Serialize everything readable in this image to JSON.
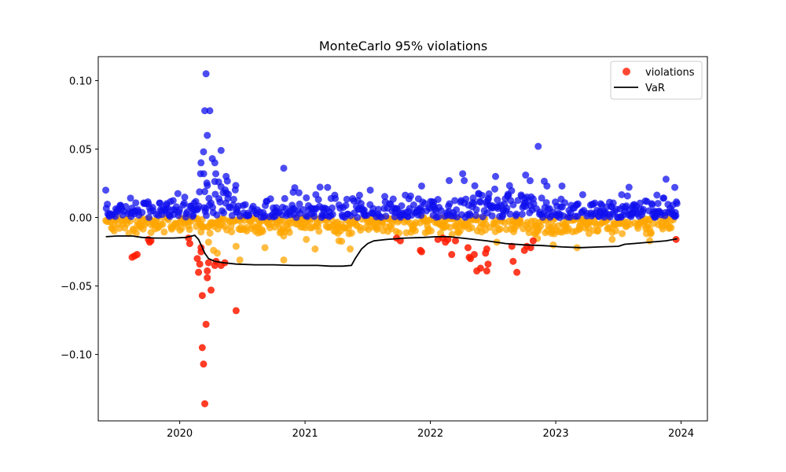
{
  "chart_data": {
    "type": "scatter",
    "title": "MonteCarlo 95% violations",
    "xlabel": "",
    "ylabel": "",
    "xlim": [
      2019.35,
      2024.21
    ],
    "ylim": [
      -0.1485,
      0.1175
    ],
    "x_ticks": [
      2020,
      2021,
      2022,
      2023,
      2024
    ],
    "x_tick_labels": [
      "2020",
      "2021",
      "2022",
      "2023",
      "2024"
    ],
    "y_ticks": [
      0.1,
      0.05,
      0.0,
      -0.05,
      -0.1
    ],
    "y_tick_labels": [
      "0.10",
      "0.05",
      "0.00",
      "−0.05",
      "−0.10"
    ],
    "legend": {
      "placement": "top-right"
    },
    "grid": false,
    "colors": {
      "positive": "#1010ee",
      "negative": "#ffa500",
      "violations": "#ff1a00",
      "var": "#000000"
    },
    "series": [
      {
        "name": "violations",
        "kind": "scatter",
        "points": [
          [
            2019.62,
            -0.029
          ],
          [
            2019.64,
            -0.028
          ],
          [
            2019.66,
            -0.027
          ],
          [
            2019.75,
            -0.016
          ],
          [
            2019.76,
            -0.018
          ],
          [
            2019.77,
            -0.017
          ],
          [
            2020.07,
            -0.015
          ],
          [
            2020.08,
            -0.019
          ],
          [
            2020.14,
            -0.03
          ],
          [
            2020.15,
            -0.04
          ],
          [
            2020.16,
            -0.034
          ],
          [
            2020.17,
            -0.022
          ],
          [
            2020.17,
            -0.025
          ],
          [
            2020.18,
            -0.057
          ],
          [
            2020.18,
            -0.095
          ],
          [
            2020.19,
            -0.107
          ],
          [
            2020.2,
            -0.136
          ],
          [
            2020.21,
            -0.078
          ],
          [
            2020.22,
            -0.044
          ],
          [
            2020.22,
            -0.039
          ],
          [
            2020.23,
            -0.033
          ],
          [
            2020.25,
            -0.053
          ],
          [
            2020.28,
            -0.035
          ],
          [
            2020.29,
            -0.032
          ],
          [
            2020.33,
            -0.035
          ],
          [
            2020.36,
            -0.033
          ],
          [
            2020.45,
            -0.068
          ],
          [
            2021.73,
            -0.015
          ],
          [
            2021.76,
            -0.017
          ],
          [
            2021.92,
            -0.024
          ],
          [
            2021.93,
            -0.025
          ],
          [
            2022.06,
            -0.016
          ],
          [
            2022.1,
            -0.015
          ],
          [
            2022.12,
            -0.018
          ],
          [
            2022.14,
            -0.016
          ],
          [
            2022.17,
            -0.027
          ],
          [
            2022.2,
            -0.017
          ],
          [
            2022.3,
            -0.022
          ],
          [
            2022.31,
            -0.029
          ],
          [
            2022.32,
            -0.03
          ],
          [
            2022.35,
            -0.027
          ],
          [
            2022.37,
            -0.039
          ],
          [
            2022.4,
            -0.037
          ],
          [
            2022.44,
            -0.026
          ],
          [
            2022.45,
            -0.023
          ],
          [
            2022.45,
            -0.039
          ],
          [
            2022.46,
            -0.034
          ],
          [
            2022.65,
            -0.021
          ],
          [
            2022.66,
            -0.032
          ],
          [
            2022.69,
            -0.04
          ],
          [
            2022.75,
            -0.024
          ],
          [
            2022.77,
            -0.021
          ],
          [
            2022.8,
            -0.022
          ],
          [
            2022.82,
            -0.017
          ],
          [
            2023.96,
            -0.016
          ]
        ]
      },
      {
        "name": "VaR",
        "kind": "line",
        "points": [
          [
            2019.41,
            -0.014
          ],
          [
            2019.5,
            -0.0135
          ],
          [
            2019.62,
            -0.0135
          ],
          [
            2019.7,
            -0.0145
          ],
          [
            2019.8,
            -0.015
          ],
          [
            2019.95,
            -0.015
          ],
          [
            2020.05,
            -0.0145
          ],
          [
            2020.12,
            -0.013
          ],
          [
            2020.15,
            -0.016
          ],
          [
            2020.18,
            -0.022
          ],
          [
            2020.2,
            -0.026
          ],
          [
            2020.23,
            -0.03
          ],
          [
            2020.28,
            -0.032
          ],
          [
            2020.35,
            -0.033
          ],
          [
            2020.45,
            -0.034
          ],
          [
            2020.6,
            -0.0345
          ],
          [
            2020.75,
            -0.0345
          ],
          [
            2020.9,
            -0.035
          ],
          [
            2021.1,
            -0.035
          ],
          [
            2021.2,
            -0.0355
          ],
          [
            2021.3,
            -0.0355
          ],
          [
            2021.37,
            -0.035
          ],
          [
            2021.4,
            -0.03
          ],
          [
            2021.45,
            -0.023
          ],
          [
            2021.5,
            -0.019
          ],
          [
            2021.55,
            -0.017
          ],
          [
            2021.65,
            -0.016
          ],
          [
            2021.8,
            -0.015
          ],
          [
            2021.95,
            -0.0145
          ],
          [
            2022.05,
            -0.014
          ],
          [
            2022.15,
            -0.014
          ],
          [
            2022.25,
            -0.015
          ],
          [
            2022.35,
            -0.016
          ],
          [
            2022.45,
            -0.017
          ],
          [
            2022.6,
            -0.019
          ],
          [
            2022.75,
            -0.02
          ],
          [
            2022.9,
            -0.0205
          ],
          [
            2023.05,
            -0.0215
          ],
          [
            2023.2,
            -0.022
          ],
          [
            2023.35,
            -0.0215
          ],
          [
            2023.5,
            -0.021
          ],
          [
            2023.55,
            -0.0195
          ],
          [
            2023.62,
            -0.019
          ],
          [
            2023.75,
            -0.018
          ],
          [
            2023.88,
            -0.017
          ],
          [
            2023.97,
            -0.0155
          ]
        ]
      }
    ],
    "background_points": {
      "positive": [
        [
          2019.41,
          0.02
        ],
        [
          2020.17,
          0.04
        ],
        [
          2020.19,
          0.048
        ],
        [
          2020.2,
          0.078
        ],
        [
          2020.21,
          0.105
        ],
        [
          2020.22,
          0.06
        ],
        [
          2020.24,
          0.078
        ],
        [
          2020.26,
          0.043
        ],
        [
          2020.28,
          0.04
        ],
        [
          2020.33,
          0.049
        ],
        [
          2020.31,
          0.026
        ],
        [
          2020.37,
          0.03
        ],
        [
          2020.83,
          0.036
        ],
        [
          2021.18,
          0.022
        ],
        [
          2022.15,
          0.027
        ],
        [
          2022.27,
          0.027
        ],
        [
          2022.52,
          0.03
        ],
        [
          2022.76,
          0.031
        ],
        [
          2022.86,
          0.052
        ],
        [
          2022.93,
          0.023
        ],
        [
          2023.05,
          0.023
        ],
        [
          2023.88,
          0.028
        ],
        [
          2023.95,
          0.022
        ],
        [
          2021.93,
          0.023
        ],
        [
          2021.52,
          0.02
        ]
      ],
      "negative": [
        [
          2020.23,
          -0.018
        ],
        [
          2020.27,
          -0.024
        ],
        [
          2020.3,
          -0.026
        ],
        [
          2020.45,
          -0.021
        ],
        [
          2020.48,
          -0.031
        ],
        [
          2020.68,
          -0.022
        ],
        [
          2020.83,
          -0.031
        ],
        [
          2021.01,
          -0.016
        ],
        [
          2021.08,
          -0.023
        ],
        [
          2021.36,
          -0.023
        ],
        [
          2021.27,
          -0.017
        ],
        [
          2022.53,
          -0.018
        ],
        [
          2022.98,
          -0.02
        ],
        [
          2023.17,
          -0.022
        ],
        [
          2023.45,
          -0.016
        ],
        [
          2023.75,
          -0.017
        ]
      ]
    }
  }
}
